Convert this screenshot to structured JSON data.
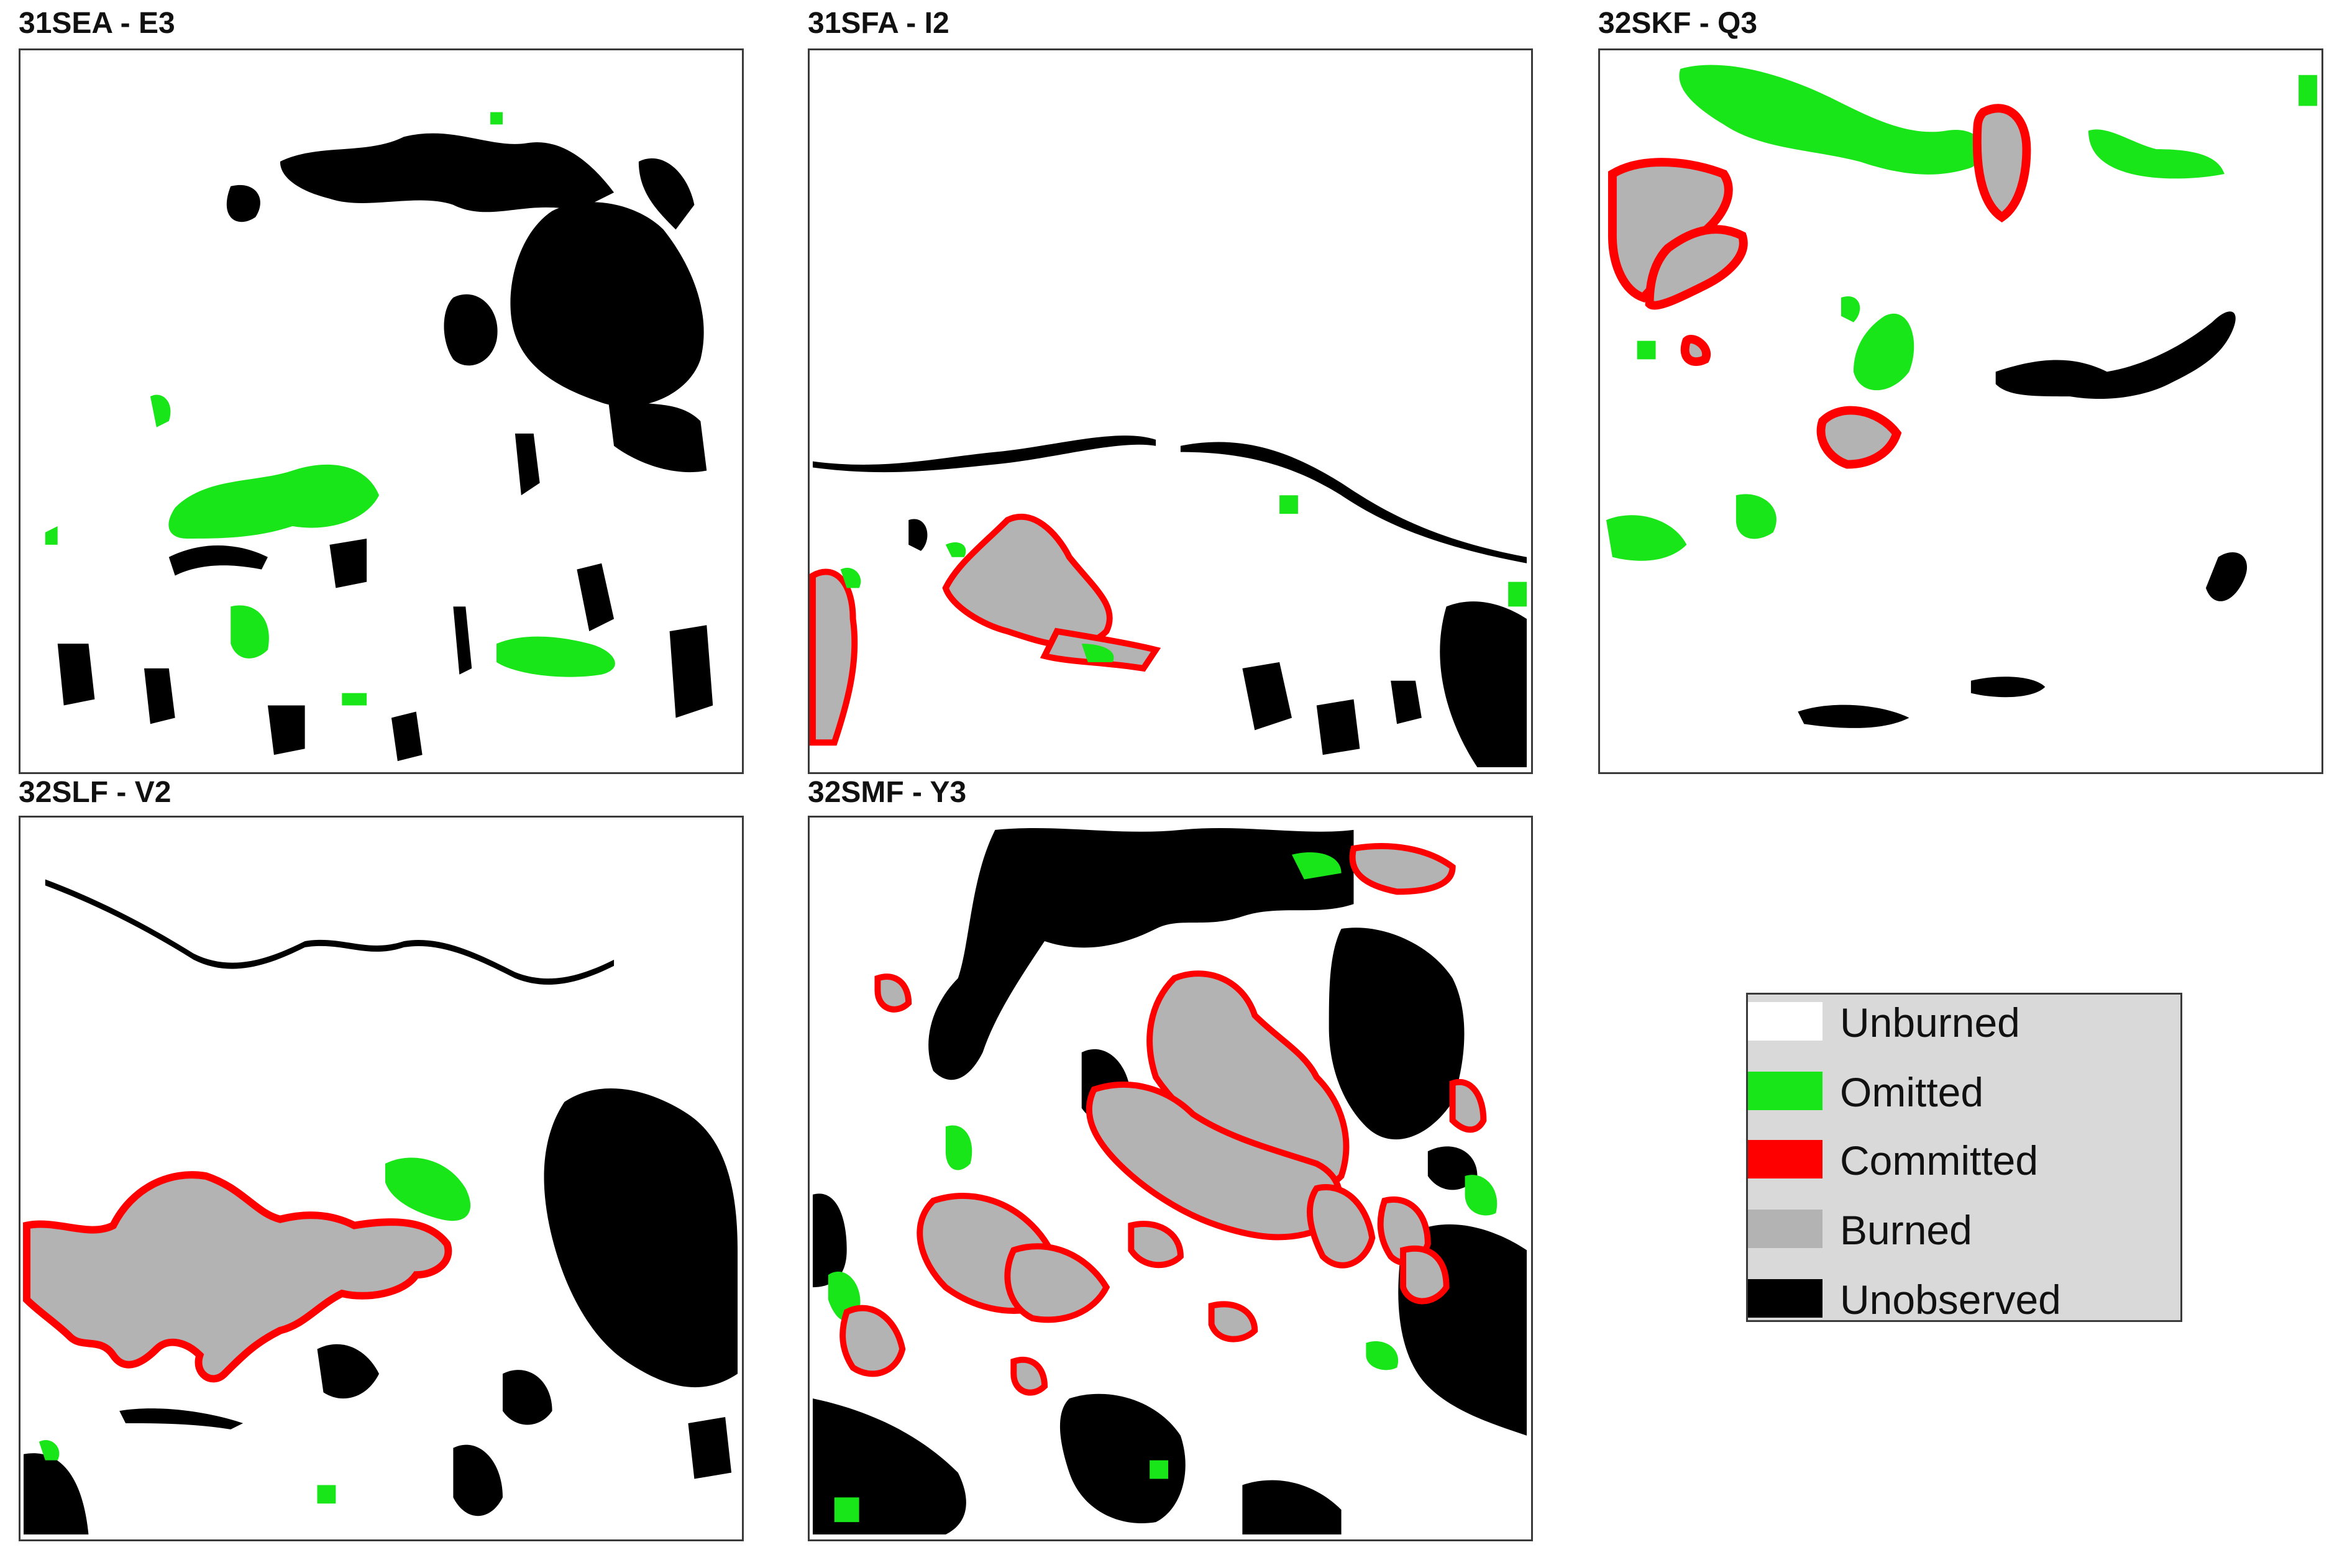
{
  "colors": {
    "unburned": "#ffffff",
    "omitted": "#19e619",
    "committed": "#ff0000",
    "burned": "#b3b3b3",
    "unobserved": "#000000",
    "legend_bg": "#d9d9d9"
  },
  "panels": [
    {
      "title": "31SEA - E3"
    },
    {
      "title": "31SFA - I2"
    },
    {
      "title": "32SKF - Q3"
    },
    {
      "title": "32SLF - V2"
    },
    {
      "title": "32SMF - Y3"
    }
  ],
  "legend": {
    "items": [
      {
        "label": "Unburned",
        "swatch": "unburned"
      },
      {
        "label": "Omitted",
        "swatch": "omitted"
      },
      {
        "label": "Committed",
        "swatch": "committed"
      },
      {
        "label": "Burned",
        "swatch": "burned"
      },
      {
        "label": "Unobserved",
        "swatch": "unobserved"
      }
    ]
  }
}
